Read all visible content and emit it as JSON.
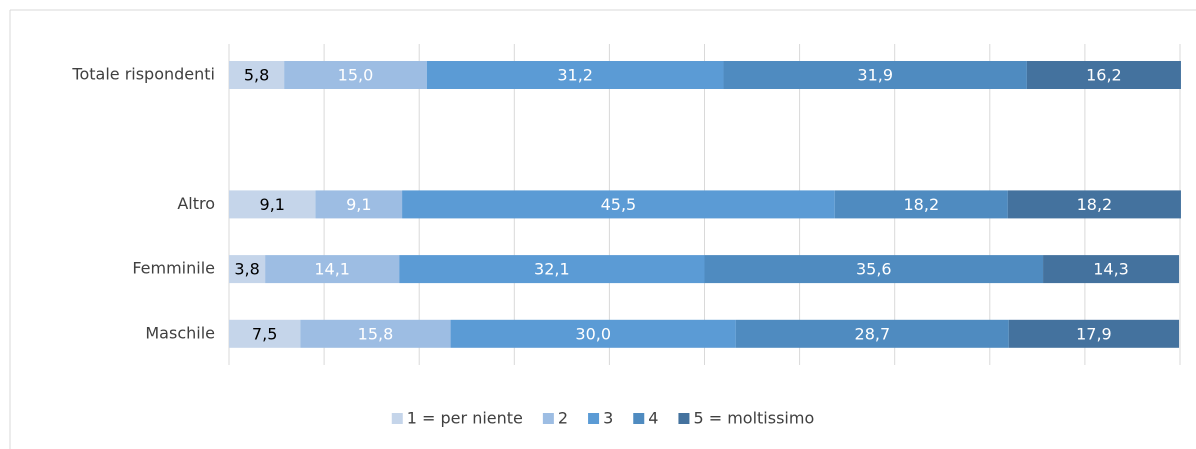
{
  "chart_data": {
    "type": "stacked-barh",
    "categories": [
      "Totale rispondenti",
      null,
      "Altro",
      "Femminile",
      "Maschile"
    ],
    "series": [
      {
        "name": "1 = per niente",
        "color": "#c5d5ea",
        "values": [
          5.8,
          null,
          9.1,
          3.8,
          7.5
        ],
        "value_labels": [
          "5,8",
          null,
          "9,1",
          "3,8",
          "7,5"
        ]
      },
      {
        "name": "2",
        "color": "#9dbde3",
        "values": [
          15.0,
          null,
          9.1,
          14.1,
          15.8
        ],
        "value_labels": [
          "15,0",
          null,
          "9,1",
          "14,1",
          "15,8"
        ]
      },
      {
        "name": "3",
        "color": "#5b9bd5",
        "values": [
          31.2,
          null,
          45.5,
          32.1,
          30.0
        ],
        "value_labels": [
          "31,2",
          null,
          "45,5",
          "32,1",
          "30,0"
        ]
      },
      {
        "name": "4",
        "color": "#4f8bc0",
        "values": [
          31.9,
          null,
          18.2,
          35.6,
          28.7
        ],
        "value_labels": [
          "31,9",
          null,
          "18,2",
          "35,6",
          "28,7"
        ]
      },
      {
        "name": "5 = moltissimo",
        "color": "#44729e",
        "values": [
          16.2,
          null,
          18.2,
          14.3,
          17.9
        ],
        "value_labels": [
          "16,2",
          null,
          "18,2",
          "14,3",
          "17,9"
        ]
      }
    ],
    "xlim": [
      0,
      100
    ],
    "xticks": [
      0,
      10,
      20,
      30,
      40,
      50,
      60,
      70,
      80,
      90,
      100
    ],
    "grid": true,
    "legend": "bottom"
  }
}
